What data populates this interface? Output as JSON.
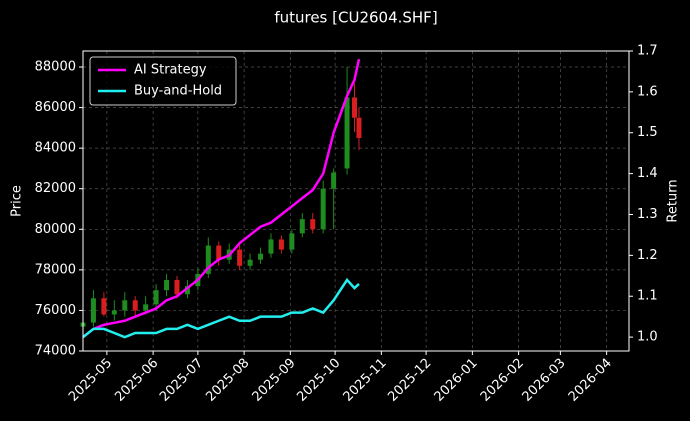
{
  "chart_data": {
    "type": "candlestick",
    "title": "futures [CU2604.SHF]",
    "ylabel": "Price",
    "y2label": "Return",
    "x": [
      "2025-04-15",
      "2025-04-22",
      "2025-04-29",
      "2025-05-06",
      "2025-05-13",
      "2025-05-20",
      "2025-05-27",
      "2025-06-03",
      "2025-06-10",
      "2025-06-17",
      "2025-06-24",
      "2025-07-01",
      "2025-07-08",
      "2025-07-15",
      "2025-07-22",
      "2025-07-29",
      "2025-08-05",
      "2025-08-12",
      "2025-08-19",
      "2025-08-26",
      "2025-09-02",
      "2025-09-09",
      "2025-09-16",
      "2025-09-23",
      "2025-09-30",
      "2025-10-09",
      "2025-10-14",
      "2025-10-17"
    ],
    "open": [
      75200,
      75400,
      76600,
      75800,
      76000,
      76500,
      76000,
      76300,
      77000,
      77500,
      76800,
      77200,
      77800,
      79200,
      78500,
      79000,
      78200,
      78500,
      78800,
      79500,
      79000,
      79800,
      80500,
      80000,
      82000,
      83000,
      86500,
      85500
    ],
    "high": [
      76000,
      77000,
      76900,
      76500,
      76900,
      76700,
      76700,
      77300,
      77800,
      77700,
      77500,
      78100,
      79600,
      79400,
      79300,
      79300,
      78800,
      79100,
      79800,
      79700,
      80000,
      80800,
      80800,
      82400,
      83000,
      88000,
      87200,
      86000
    ],
    "low": [
      74800,
      75200,
      75700,
      75500,
      75700,
      75700,
      75800,
      76000,
      76700,
      76600,
      76600,
      77000,
      77600,
      78200,
      78300,
      78000,
      78000,
      78300,
      78600,
      78800,
      78800,
      79600,
      79800,
      79800,
      80000,
      82700,
      84800,
      83900
    ],
    "close": [
      75400,
      76600,
      75800,
      76000,
      76500,
      76000,
      76300,
      77000,
      77500,
      76800,
      77200,
      77800,
      79200,
      78500,
      79000,
      78200,
      78500,
      78800,
      79500,
      79000,
      79800,
      80500,
      80000,
      82000,
      82800,
      86500,
      85500,
      84500
    ],
    "up_color": "#1e8c1e",
    "down_color": "#d81e1e",
    "series": [
      {
        "name": "AI Strategy",
        "color": "#ff00ff",
        "axis": "y2",
        "values": [
          1.0,
          1.02,
          1.03,
          1.035,
          1.04,
          1.05,
          1.06,
          1.07,
          1.09,
          1.1,
          1.12,
          1.14,
          1.17,
          1.19,
          1.2,
          1.23,
          1.25,
          1.27,
          1.28,
          1.3,
          1.32,
          1.34,
          1.36,
          1.4,
          1.5,
          1.59,
          1.63,
          1.68
        ]
      },
      {
        "name": "Buy-and-Hold",
        "color": "#22eeee",
        "axis": "y2",
        "values": [
          1.0,
          1.02,
          1.02,
          1.01,
          1.0,
          1.01,
          1.01,
          1.01,
          1.02,
          1.02,
          1.03,
          1.02,
          1.03,
          1.04,
          1.05,
          1.04,
          1.04,
          1.05,
          1.05,
          1.05,
          1.06,
          1.06,
          1.07,
          1.06,
          1.09,
          1.14,
          1.12,
          1.13
        ]
      }
    ],
    "xlim": [
      "2025-04-15",
      "2026-04-16"
    ],
    "xticks": [
      {
        "value": "2025-05-01",
        "label": "2025-05"
      },
      {
        "value": "2025-06-01",
        "label": "2025-06"
      },
      {
        "value": "2025-07-01",
        "label": "2025-07"
      },
      {
        "value": "2025-08-01",
        "label": "2025-08"
      },
      {
        "value": "2025-09-01",
        "label": "2025-09"
      },
      {
        "value": "2025-10-01",
        "label": "2025-10"
      },
      {
        "value": "2025-11-01",
        "label": "2025-11"
      },
      {
        "value": "2025-12-01",
        "label": "2025-12"
      },
      {
        "value": "2026-01-01",
        "label": "2026-01"
      },
      {
        "value": "2026-02-01",
        "label": "2026-02"
      },
      {
        "value": "2026-03-01",
        "label": "2026-03"
      },
      {
        "value": "2026-04-01",
        "label": "2026-04"
      }
    ],
    "ylim": [
      74000,
      88790
    ],
    "yticks": [
      74000,
      76000,
      78000,
      80000,
      82000,
      84000,
      86000,
      88000
    ],
    "y2lim": [
      0.966,
      1.7
    ],
    "y2ticks": [
      {
        "value": 1,
        "label": "1.0"
      },
      1.1,
      1.2,
      1.3,
      1.4,
      1.5,
      1.6,
      1.7
    ],
    "grid": true,
    "legend": "upper left"
  }
}
